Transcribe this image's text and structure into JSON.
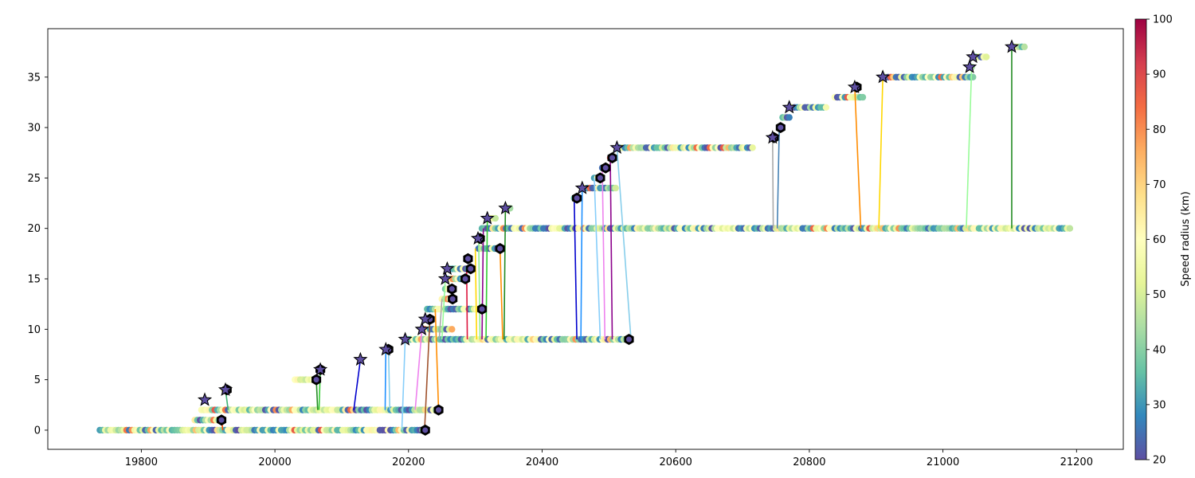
{
  "chart_data": {
    "type": "scatter",
    "title": "",
    "xlabel": "",
    "ylabel": "",
    "xlim": [
      19660,
      21270
    ],
    "ylim": [
      -1.9,
      39.8
    ],
    "x_ticks": [
      19800,
      20000,
      20200,
      20400,
      20600,
      20800,
      21000,
      21200
    ],
    "y_ticks": [
      0,
      5,
      10,
      15,
      20,
      25,
      30,
      35
    ],
    "grid": false,
    "colorbar": {
      "label": "Speed radius (km)",
      "range": [
        20,
        100
      ],
      "ticks": [
        20,
        30,
        40,
        50,
        60,
        70,
        80,
        90,
        100
      ],
      "colormap": "Spectral_r"
    },
    "tracks": [
      {
        "y": 0,
        "x_start": 19738,
        "x_end": 20225
      },
      {
        "y": 1,
        "x_start": 19880,
        "x_end": 19920
      },
      {
        "y": 2,
        "x_start": 19890,
        "x_end": 20245
      },
      {
        "y": 3,
        "x_start": 19895,
        "x_end": 19895
      },
      {
        "y": 4,
        "x_start": 19924,
        "x_end": 19928
      },
      {
        "y": 5,
        "x_start": 20030,
        "x_end": 20062
      },
      {
        "y": 6,
        "x_start": 20068,
        "x_end": 20068
      },
      {
        "y": 7,
        "x_start": 20128,
        "x_end": 20128
      },
      {
        "y": 8,
        "x_start": 20166,
        "x_end": 20170
      },
      {
        "y": 9,
        "x_start": 20195,
        "x_end": 20530
      },
      {
        "y": 10,
        "x_start": 20220,
        "x_end": 20265
      },
      {
        "y": 11,
        "x_start": 20225,
        "x_end": 20232
      },
      {
        "y": 12,
        "x_start": 20228,
        "x_end": 20310
      },
      {
        "y": 13,
        "x_start": 20250,
        "x_end": 20266
      },
      {
        "y": 14,
        "x_start": 20255,
        "x_end": 20265
      },
      {
        "y": 15,
        "x_start": 20255,
        "x_end": 20285
      },
      {
        "y": 16,
        "x_start": 20258,
        "x_end": 20293
      },
      {
        "y": 17,
        "x_start": 20287,
        "x_end": 20289
      },
      {
        "y": 18,
        "x_start": 20305,
        "x_end": 20337
      },
      {
        "y": 19,
        "x_start": 20304,
        "x_end": 20307
      },
      {
        "y": 20,
        "x_start": 20310,
        "x_end": 21190
      },
      {
        "y": 21,
        "x_start": 20318,
        "x_end": 20330
      },
      {
        "y": 22,
        "x_start": 20345,
        "x_end": 20352
      },
      {
        "y": 23,
        "x_start": 20448,
        "x_end": 20452
      },
      {
        "y": 24,
        "x_start": 20460,
        "x_end": 20510
      },
      {
        "y": 25,
        "x_start": 20478,
        "x_end": 20487
      },
      {
        "y": 26,
        "x_start": 20490,
        "x_end": 20495
      },
      {
        "y": 27,
        "x_start": 20502,
        "x_end": 20505
      },
      {
        "y": 28,
        "x_start": 20512,
        "x_end": 20715
      },
      {
        "y": 29,
        "x_start": 20745,
        "x_end": 20747
      },
      {
        "y": 30,
        "x_start": 20755,
        "x_end": 20757
      },
      {
        "y": 31,
        "x_start": 20760,
        "x_end": 20770
      },
      {
        "y": 32,
        "x_start": 20770,
        "x_end": 20825
      },
      {
        "y": 33,
        "x_start": 20838,
        "x_end": 20880
      },
      {
        "y": 34,
        "x_start": 20868,
        "x_end": 20871
      },
      {
        "y": 35,
        "x_start": 20910,
        "x_end": 21045
      },
      {
        "y": 36,
        "x_start": 21040,
        "x_end": 21043
      },
      {
        "y": 37,
        "x_start": 21045,
        "x_end": 21065
      },
      {
        "y": 38,
        "x_start": 21103,
        "x_end": 21122
      }
    ],
    "connections": [
      {
        "x1": 19920,
        "y1": 1,
        "x2": 19922,
        "y2": 0,
        "color": "#ff4500"
      },
      {
        "x1": 19926,
        "y1": 4,
        "x2": 19930,
        "y2": 2,
        "color": "#3cb371"
      },
      {
        "x1": 20062,
        "y1": 5,
        "x2": 20064,
        "y2": 2,
        "color": "#228b22"
      },
      {
        "x1": 20068,
        "y1": 6,
        "x2": 20066,
        "y2": 2,
        "color": "#32cd32"
      },
      {
        "x1": 20128,
        "y1": 7,
        "x2": 20118,
        "y2": 2,
        "color": "#0000cd"
      },
      {
        "x1": 20166,
        "y1": 8,
        "x2": 20165,
        "y2": 2,
        "color": "#1e90ff"
      },
      {
        "x1": 20170,
        "y1": 8,
        "x2": 20172,
        "y2": 2,
        "color": "#87ceeb"
      },
      {
        "x1": 20195,
        "y1": 9,
        "x2": 20190,
        "y2": 0,
        "color": "#87cefa"
      },
      {
        "x1": 20220,
        "y1": 10,
        "x2": 20210,
        "y2": 2,
        "color": "#ee82ee"
      },
      {
        "x1": 20232,
        "y1": 11,
        "x2": 20224,
        "y2": 0,
        "color": "#a0522d"
      },
      {
        "x1": 20240,
        "y1": 12,
        "x2": 20245,
        "y2": 2,
        "color": "#ff8c00"
      },
      {
        "x1": 20250,
        "y1": 13,
        "x2": 20246,
        "y2": 9,
        "color": "#a9a9a9"
      },
      {
        "x1": 20255,
        "y1": 15,
        "x2": 20250,
        "y2": 9,
        "color": "#98fb98"
      },
      {
        "x1": 20287,
        "y1": 16,
        "x2": 20288,
        "y2": 9,
        "color": "#dc143c"
      },
      {
        "x1": 20300,
        "y1": 18,
        "x2": 20302,
        "y2": 9,
        "color": "#ffd700"
      },
      {
        "x1": 20305,
        "y1": 19,
        "x2": 20307,
        "y2": 9,
        "color": "#90ee90"
      },
      {
        "x1": 20312,
        "y1": 20,
        "x2": 20310,
        "y2": 9,
        "color": "#8b008b"
      },
      {
        "x1": 20318,
        "y1": 21,
        "x2": 20316,
        "y2": 9,
        "color": "#32cd32"
      },
      {
        "x1": 20337,
        "y1": 18,
        "x2": 20341,
        "y2": 9,
        "color": "#ff8c00"
      },
      {
        "x1": 20345,
        "y1": 22,
        "x2": 20343,
        "y2": 9,
        "color": "#228b22"
      },
      {
        "x1": 20448,
        "y1": 23,
        "x2": 20452,
        "y2": 9,
        "color": "#0000cd"
      },
      {
        "x1": 20460,
        "y1": 24,
        "x2": 20458,
        "y2": 9,
        "color": "#1e90ff"
      },
      {
        "x1": 20478,
        "y1": 25,
        "x2": 20487,
        "y2": 9,
        "color": "#87cefa"
      },
      {
        "x1": 20490,
        "y1": 26,
        "x2": 20494,
        "y2": 9,
        "color": "#ee82ee"
      },
      {
        "x1": 20502,
        "y1": 27,
        "x2": 20505,
        "y2": 9,
        "color": "#8b008b"
      },
      {
        "x1": 20512,
        "y1": 28,
        "x2": 20533,
        "y2": 9,
        "color": "#87ceeb"
      },
      {
        "x1": 20745,
        "y1": 29,
        "x2": 20746,
        "y2": 20,
        "color": "#a9a9a9"
      },
      {
        "x1": 20755,
        "y1": 30,
        "x2": 20752,
        "y2": 20,
        "color": "#4682b4"
      },
      {
        "x1": 20868,
        "y1": 34,
        "x2": 20877,
        "y2": 20,
        "color": "#ff8c00"
      },
      {
        "x1": 20910,
        "y1": 35,
        "x2": 20904,
        "y2": 20,
        "color": "#ffd700"
      },
      {
        "x1": 21043,
        "y1": 36,
        "x2": 21035,
        "y2": 20,
        "color": "#98fb98"
      },
      {
        "x1": 21103,
        "y1": 38,
        "x2": 21103,
        "y2": 20,
        "color": "#228b22"
      }
    ],
    "star_markers": [
      {
        "x": 19895,
        "y": 3
      },
      {
        "x": 19926,
        "y": 4
      },
      {
        "x": 20068,
        "y": 6
      },
      {
        "x": 20128,
        "y": 7
      },
      {
        "x": 20166,
        "y": 8
      },
      {
        "x": 20195,
        "y": 9
      },
      {
        "x": 20220,
        "y": 10
      },
      {
        "x": 20225,
        "y": 11
      },
      {
        "x": 20255,
        "y": 15
      },
      {
        "x": 20258,
        "y": 16
      },
      {
        "x": 20304,
        "y": 19
      },
      {
        "x": 20318,
        "y": 21
      },
      {
        "x": 20345,
        "y": 22
      },
      {
        "x": 20460,
        "y": 24
      },
      {
        "x": 20512,
        "y": 28
      },
      {
        "x": 20745,
        "y": 29
      },
      {
        "x": 20770,
        "y": 32
      },
      {
        "x": 20868,
        "y": 34
      },
      {
        "x": 20910,
        "y": 35
      },
      {
        "x": 21040,
        "y": 36
      },
      {
        "x": 21045,
        "y": 37
      },
      {
        "x": 21103,
        "y": 38
      }
    ],
    "end_markers": [
      {
        "x": 19920,
        "y": 1
      },
      {
        "x": 19928,
        "y": 4
      },
      {
        "x": 20062,
        "y": 5
      },
      {
        "x": 20068,
        "y": 6
      },
      {
        "x": 20170,
        "y": 8
      },
      {
        "x": 20225,
        "y": 0
      },
      {
        "x": 20245,
        "y": 2
      },
      {
        "x": 20530,
        "y": 9
      },
      {
        "x": 20232,
        "y": 11
      },
      {
        "x": 20310,
        "y": 12
      },
      {
        "x": 20266,
        "y": 13
      },
      {
        "x": 20265,
        "y": 14
      },
      {
        "x": 20285,
        "y": 15
      },
      {
        "x": 20293,
        "y": 16
      },
      {
        "x": 20289,
        "y": 17
      },
      {
        "x": 20337,
        "y": 18
      },
      {
        "x": 20307,
        "y": 19
      },
      {
        "x": 20452,
        "y": 23
      },
      {
        "x": 20487,
        "y": 25
      },
      {
        "x": 20495,
        "y": 26
      },
      {
        "x": 20505,
        "y": 27
      },
      {
        "x": 20747,
        "y": 29
      },
      {
        "x": 20757,
        "y": 30
      },
      {
        "x": 20871,
        "y": 34
      }
    ]
  }
}
